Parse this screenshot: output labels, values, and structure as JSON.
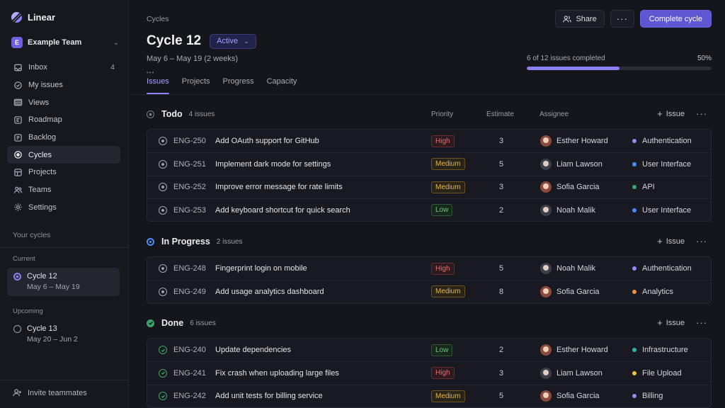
{
  "app": {
    "name": "Linear"
  },
  "team": {
    "initial": "E",
    "name": "Example Team"
  },
  "nav": [
    {
      "label": "Inbox",
      "icon": "inbox-icon",
      "count": "4"
    },
    {
      "label": "My issues",
      "icon": "my-issues-icon",
      "count": ""
    },
    {
      "label": "Views",
      "icon": "views-icon",
      "count": ""
    },
    {
      "label": "Roadmap",
      "icon": "roadmap-icon",
      "count": ""
    },
    {
      "label": "Backlog",
      "icon": "backlog-icon",
      "count": ""
    },
    {
      "label": "Cycles",
      "icon": "cycles-icon",
      "count": "",
      "active": true
    },
    {
      "label": "Projects",
      "icon": "projects-icon",
      "count": ""
    },
    {
      "label": "Teams",
      "icon": "teams-icon",
      "count": ""
    },
    {
      "label": "Settings",
      "icon": "settings-icon",
      "count": ""
    }
  ],
  "sidebar": {
    "your_cycles": "Your cycles",
    "current_heading": "Current",
    "current_cycle": {
      "name": "Cycle 12",
      "dates": "May 6 – May 19"
    },
    "upcoming_heading": "Upcoming",
    "upcoming_cycle": {
      "name": "Cycle 13",
      "dates": "May 20 – Jun 2"
    },
    "invite": "Invite teammates"
  },
  "header": {
    "breadcrumb": "Cycles",
    "share_label": "Share",
    "more_label": "···",
    "complete_label": "Complete cycle",
    "title": "Cycle 12",
    "status": "Active",
    "date_range": "May 6 – May 19 (2 weeks)",
    "progress_text": "6 of 12 issues completed",
    "progress_percent": "50%",
    "progress_value": 0.5
  },
  "tabs": [
    "Issues",
    "Projects",
    "Progress",
    "Capacity"
  ],
  "columns": {
    "priority": "Priority",
    "estimate": "Estimate",
    "assignee": "Assignee"
  },
  "add_issue_label": "Issue",
  "groups": [
    {
      "key": "todo",
      "title": "Todo",
      "count": "4 issues",
      "show_columns": true,
      "issues": [
        {
          "id": "ENG-250",
          "title": "Add OAuth support for GitHub",
          "priority": "High",
          "estimate": "3",
          "assignee": "Esther Howard",
          "avatar": "f",
          "label": "Authentication",
          "label_color": "#9b87f5",
          "done": false
        },
        {
          "id": "ENG-251",
          "title": "Implement dark mode for settings",
          "priority": "Medium",
          "estimate": "5",
          "assignee": "Liam Lawson",
          "avatar": "m",
          "label": "User Interface",
          "label_color": "#4a8cf7",
          "done": false
        },
        {
          "id": "ENG-252",
          "title": "Improve error message for rate limits",
          "priority": "Medium",
          "estimate": "3",
          "assignee": "Sofia Garcia",
          "avatar": "f",
          "label": "API",
          "label_color": "#3aa569",
          "done": false
        },
        {
          "id": "ENG-253",
          "title": "Add keyboard shortcut for quick search",
          "priority": "Low",
          "estimate": "2",
          "assignee": "Noah Malik",
          "avatar": "m",
          "label": "User Interface",
          "label_color": "#4a8cf7",
          "done": false
        }
      ]
    },
    {
      "key": "progress",
      "title": "In Progress",
      "count": "2 issues",
      "show_columns": false,
      "issues": [
        {
          "id": "ENG-248",
          "title": "Fingerprint login on mobile",
          "priority": "High",
          "estimate": "5",
          "assignee": "Noah Malik",
          "avatar": "m",
          "label": "Authentication",
          "label_color": "#9b87f5",
          "done": false
        },
        {
          "id": "ENG-249",
          "title": "Add usage analytics dashboard",
          "priority": "Medium",
          "estimate": "8",
          "assignee": "Sofia Garcia",
          "avatar": "f",
          "label": "Analytics",
          "label_color": "#f0903a",
          "done": false
        }
      ]
    },
    {
      "key": "done",
      "title": "Done",
      "count": "6 issues",
      "show_columns": false,
      "issues": [
        {
          "id": "ENG-240",
          "title": "Update dependencies",
          "priority": "Low",
          "estimate": "2",
          "assignee": "Esther Howard",
          "avatar": "f",
          "label": "Infrastructure",
          "label_color": "#2fb5a8",
          "done": true
        },
        {
          "id": "ENG-241",
          "title": "Fix crash when uploading large files",
          "priority": "High",
          "estimate": "3",
          "assignee": "Liam Lawson",
          "avatar": "m",
          "label": "File Upload",
          "label_color": "#e8c23a",
          "done": true
        },
        {
          "id": "ENG-242",
          "title": "Add unit tests for billing service",
          "priority": "Medium",
          "estimate": "5",
          "assignee": "Sofia Garcia",
          "avatar": "f",
          "label": "Billing",
          "label_color": "#9b87f5",
          "done": true
        }
      ]
    }
  ]
}
